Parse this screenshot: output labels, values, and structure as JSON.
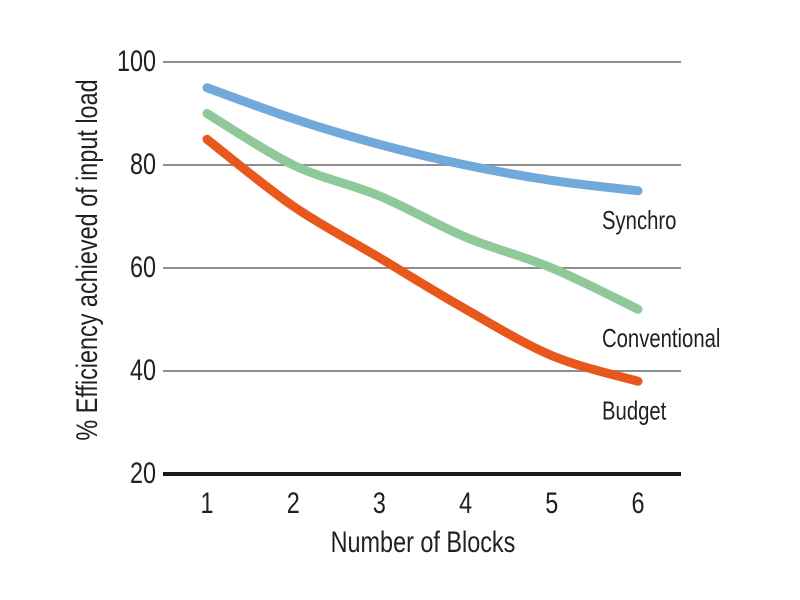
{
  "page": {
    "background": "#ffffff"
  },
  "chart_data": {
    "type": "line",
    "title": "",
    "xlabel": "Number of Blocks",
    "ylabel": "% Efficiency achieved of input load",
    "x": [
      1,
      2,
      3,
      4,
      5,
      6
    ],
    "xticks": [
      "1",
      "2",
      "3",
      "4",
      "5",
      "6"
    ],
    "yticks": [
      20,
      40,
      60,
      80,
      100
    ],
    "ylim": [
      20,
      100
    ],
    "grid": true,
    "legend_position": "inline-right-of-lines",
    "series": [
      {
        "name": "Synchro",
        "color": "#71A9DB",
        "values": [
          95,
          89,
          84,
          80,
          77,
          75
        ]
      },
      {
        "name": "Conventional",
        "color": "#8FC99A",
        "values": [
          90,
          80,
          74,
          66,
          60,
          52
        ]
      },
      {
        "name": "Budget",
        "color": "#E8581C",
        "values": [
          85,
          72,
          62,
          52,
          43,
          38
        ]
      }
    ],
    "colors": {
      "gridline": "#8E8E8E",
      "axis_baseline": "#1A1A1A",
      "text": "#231F20"
    }
  }
}
